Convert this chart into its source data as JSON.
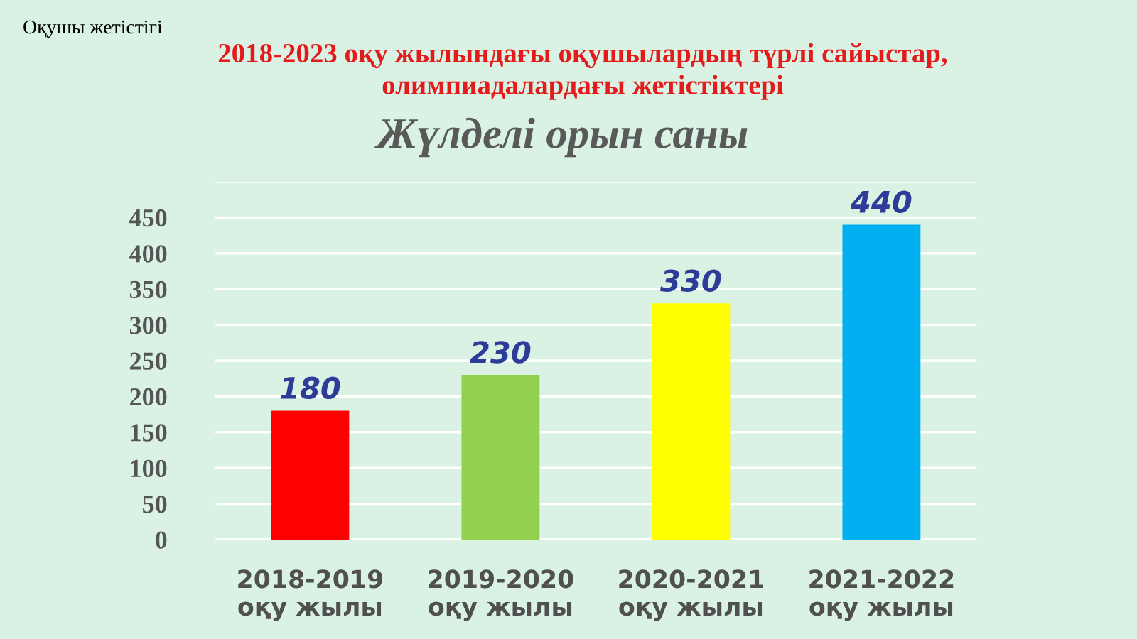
{
  "chart_data": {
    "type": "bar",
    "title": "2018-2023 оқу жылындағы оқушылардың түрлі сайыстар,\nолимпиадалардағы жетістіктері",
    "subtitle": "Жүлделі орын саны",
    "annotations": [
      "Оқушы жетістігі"
    ],
    "categories": [
      "2018-2019\nоқу жылы",
      "2019-2020\nоқу жылы",
      "2020-2021\nоқу жылы",
      "2021-2022\nоқу жылы"
    ],
    "values": [
      180,
      230,
      330,
      440
    ],
    "colors": [
      "#ff0000",
      "#92d050",
      "#ffff00",
      "#00b0f0"
    ],
    "ylim": [
      0,
      500
    ],
    "yticks": [
      0,
      50,
      100,
      150,
      200,
      250,
      300,
      350,
      400,
      450,
      {
        "value": 500,
        "label": null
      }
    ],
    "grid": "y",
    "data_labels": true
  }
}
